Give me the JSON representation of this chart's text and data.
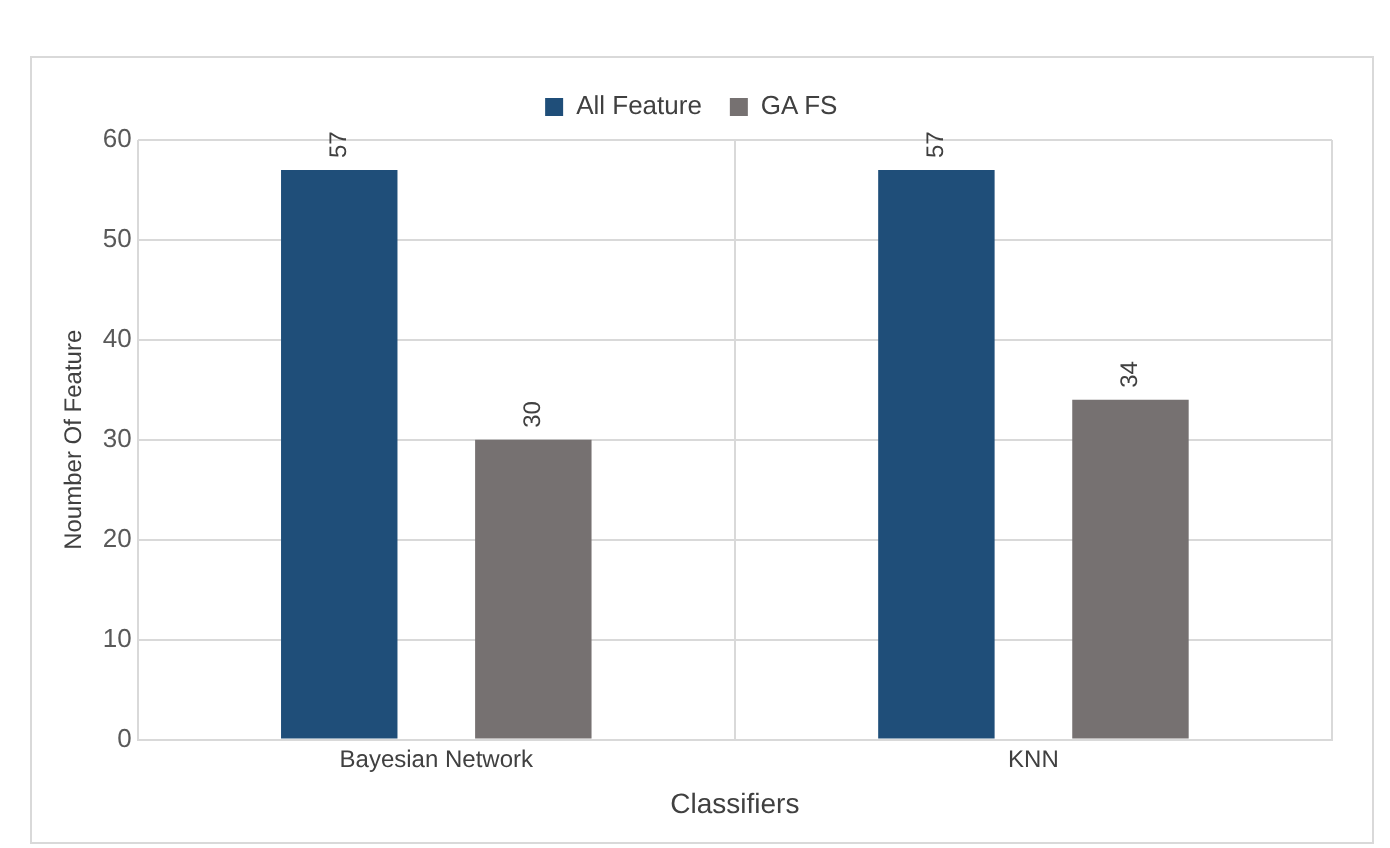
{
  "chart_data": {
    "type": "bar",
    "xlabel": "Classifiers",
    "ylabel": "Noumber Of Feature",
    "categories": [
      "Bayesian Network",
      "KNN"
    ],
    "series": [
      {
        "name": "All Feature",
        "color": "#1f4e79",
        "values": [
          57,
          57
        ]
      },
      {
        "name": "GA FS",
        "color": "#767171",
        "values": [
          30,
          34
        ]
      }
    ],
    "ylim": [
      0,
      60
    ],
    "yticks": [
      0,
      10,
      20,
      30,
      40,
      50,
      60
    ],
    "grid": true,
    "legend": "top",
    "data_labels": true
  }
}
